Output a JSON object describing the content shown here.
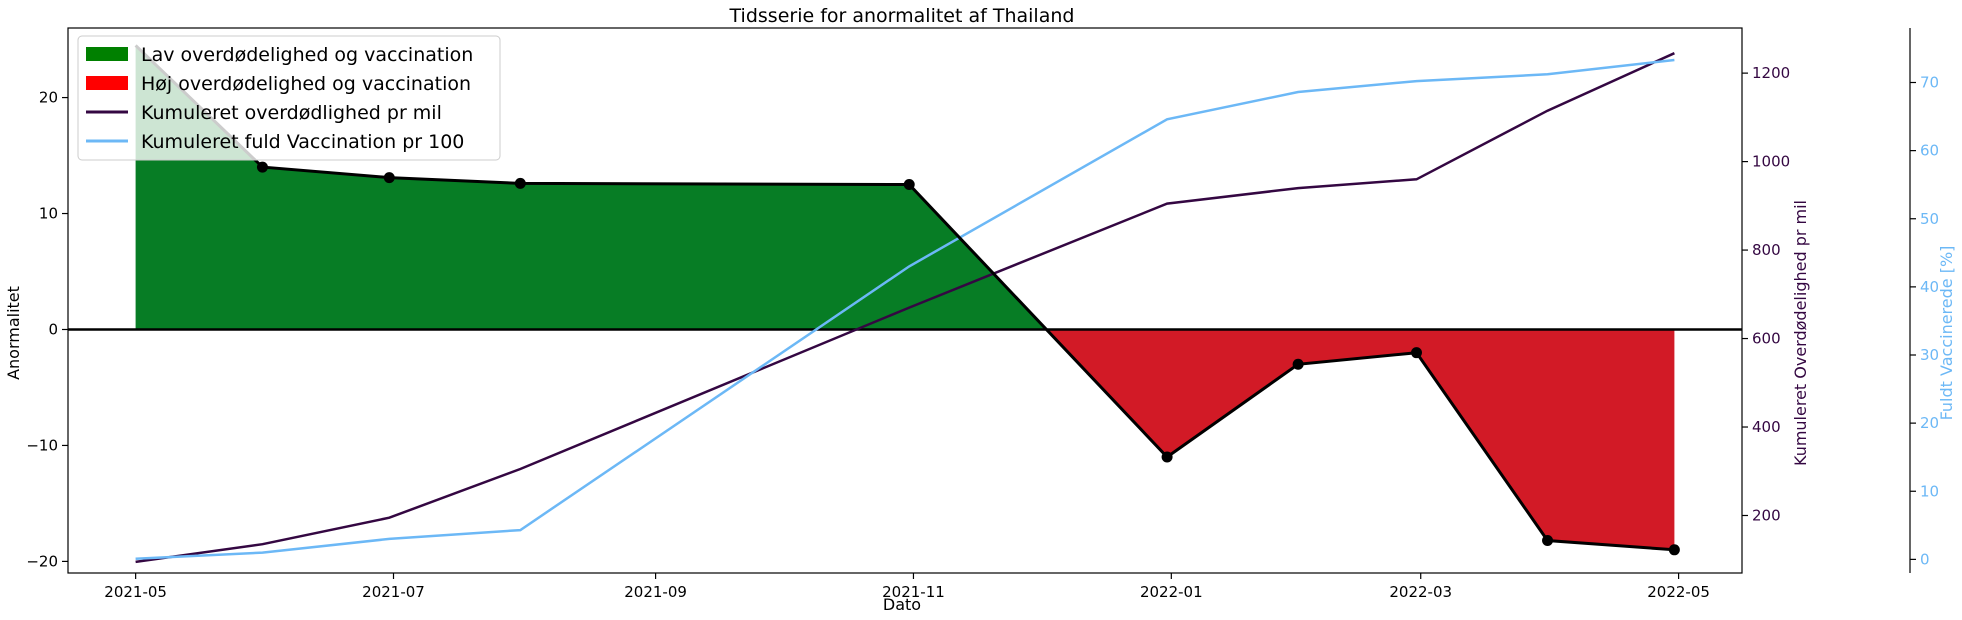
{
  "chart_data": {
    "type": "line",
    "title": "Tidsserie for anormalitet af Thailand",
    "xlabel": "Dato",
    "ylabel": "Anormalitet",
    "y2label": "Kumuleret Overdødelighed pr mil",
    "y3label": "Fuldt Vaccinerede [%]",
    "x_ticks": [
      "2021-05",
      "2021-07",
      "2021-09",
      "2021-11",
      "2022-01",
      "2022-03",
      "2022-05"
    ],
    "y_ticks": [
      "−20",
      "−10",
      "0",
      "10",
      "20"
    ],
    "y2_ticks": [
      "200",
      "400",
      "600",
      "800",
      "1000",
      "1200"
    ],
    "y3_ticks": [
      "0",
      "10",
      "20",
      "30",
      "40",
      "50",
      "60",
      "70"
    ],
    "xlim": [
      "2021-04-15",
      "2022-05-16"
    ],
    "ylim": [
      -21,
      26
    ],
    "y2lim": [
      70,
      1302
    ],
    "y3lim": [
      -2,
      78
    ],
    "legend_position": "top-left",
    "legend": [
      {
        "label": "Lav overdødelighed og vaccination",
        "kind": "patch",
        "color": "#008000"
      },
      {
        "label": "Høj overdødelighed og vaccination",
        "kind": "patch",
        "color": "#ff0000"
      },
      {
        "label": "Kumuleret overdødlighed pr mil",
        "kind": "line",
        "color": "#340742"
      },
      {
        "label": "Kumuleret fuld Vaccination pr 100",
        "kind": "line",
        "color": "#6cb8f6"
      }
    ],
    "colors": {
      "positive_fill": "#077d25",
      "negative_fill": "#d21a26",
      "anomaly_line": "#000000",
      "excess_line": "#340742",
      "vaccine_line": "#6cb8f6",
      "zero_line": "#000000"
    },
    "series": [
      {
        "name": "Anormalitet",
        "axis": "left",
        "x": [
          "2021-05-01",
          "2021-05-31",
          "2021-06-30",
          "2021-07-31",
          "2021-10-31",
          "2021-12-31",
          "2022-01-31",
          "2022-02-28",
          "2022-03-31",
          "2022-04-30"
        ],
        "values": [
          24.5,
          14.0,
          13.1,
          12.6,
          12.5,
          -11.0,
          -3.0,
          -2.0,
          -18.2,
          -19.0
        ]
      },
      {
        "name": "Kumuleret overdødlighed pr mil",
        "axis": "right1",
        "x": [
          "2021-05-01",
          "2021-05-31",
          "2021-06-30",
          "2021-07-31",
          "2021-10-31",
          "2021-12-31",
          "2022-01-31",
          "2022-02-28",
          "2022-03-31",
          "2022-04-30"
        ],
        "values": [
          95,
          135,
          195,
          305,
          670,
          905,
          940,
          960,
          1115,
          1245
        ]
      },
      {
        "name": "Kumuleret fuld Vaccination pr 100",
        "axis": "right2",
        "x": [
          "2021-05-01",
          "2021-05-31",
          "2021-06-30",
          "2021-07-31",
          "2021-10-31",
          "2021-12-31",
          "2022-01-31",
          "2022-02-28",
          "2022-03-31",
          "2022-04-30"
        ],
        "values": [
          0.1,
          1.0,
          3.0,
          4.3,
          43.0,
          64.6,
          68.6,
          70.2,
          71.2,
          73.3
        ]
      }
    ]
  }
}
